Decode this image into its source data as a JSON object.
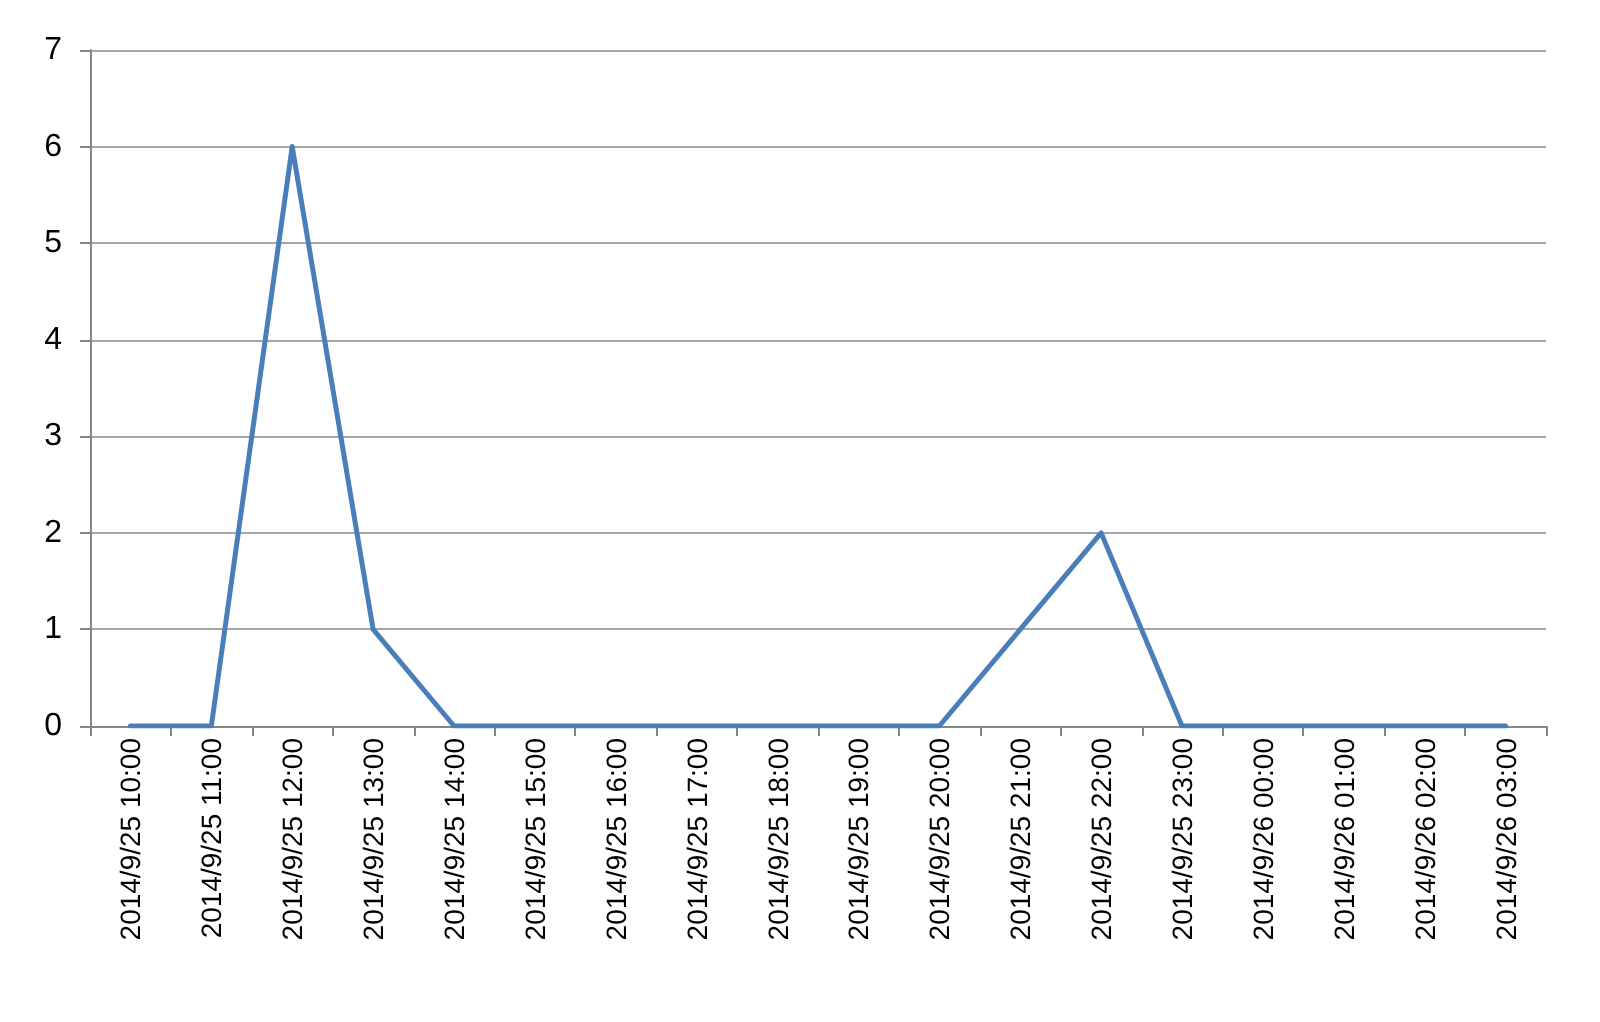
{
  "chart_data": {
    "type": "line",
    "categories": [
      "2014/9/25 10:00",
      "2014/9/25 11:00",
      "2014/9/25 12:00",
      "2014/9/25 13:00",
      "2014/9/25 14:00",
      "2014/9/25 15:00",
      "2014/9/25 16:00",
      "2014/9/25 17:00",
      "2014/9/25 18:00",
      "2014/9/25 19:00",
      "2014/9/25 20:00",
      "2014/9/25 21:00",
      "2014/9/25 22:00",
      "2014/9/25 23:00",
      "2014/9/26 00:00",
      "2014/9/26 01:00",
      "2014/9/26 02:00",
      "2014/9/26 03:00"
    ],
    "series": [
      {
        "color": "#4a7ebb",
        "values": [
          0,
          0,
          6,
          1,
          0,
          0,
          0,
          0,
          0,
          0,
          0,
          1,
          2,
          0,
          0,
          0,
          0,
          0
        ]
      }
    ],
    "ylim": [
      0,
      7
    ],
    "yticks": [
      0,
      1,
      2,
      3,
      4,
      5,
      6,
      7
    ],
    "grid": "y",
    "marker": "none",
    "line_style": "solid"
  }
}
